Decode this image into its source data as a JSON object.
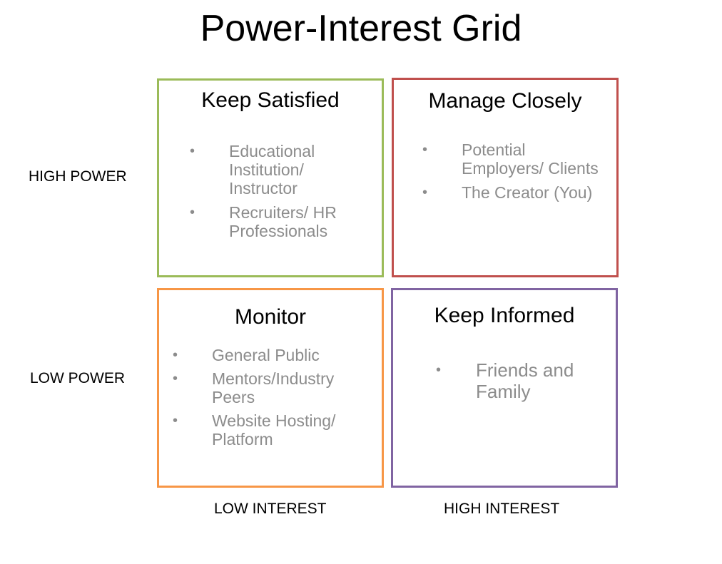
{
  "title": "Power-Interest Grid",
  "colors": {
    "keep_satisfied_border": "#9bbb59",
    "manage_closely_border": "#c0504d",
    "monitor_border": "#f79646",
    "keep_informed_border": "#8064a2",
    "item_text": "#8c8c8c"
  },
  "axes": {
    "high_power": "HIGH POWER",
    "low_power": "LOW POWER",
    "low_interest": "LOW INTEREST",
    "high_interest": "HIGH INTEREST"
  },
  "quadrants": {
    "keep_satisfied": {
      "title": "Keep Satisfied",
      "items": [
        "Educational Institution/ Instructor",
        "Recruiters/ HR Professionals"
      ]
    },
    "manage_closely": {
      "title": "Manage Closely",
      "items": [
        "Potential Employers/ Clients",
        "The Creator (You)"
      ]
    },
    "monitor": {
      "title": "Monitor",
      "items": [
        "General Public",
        "Mentors/Industry Peers",
        "Website Hosting/ Platform"
      ]
    },
    "keep_informed": {
      "title": "Keep Informed",
      "items": [
        "Friends and Family"
      ]
    }
  }
}
